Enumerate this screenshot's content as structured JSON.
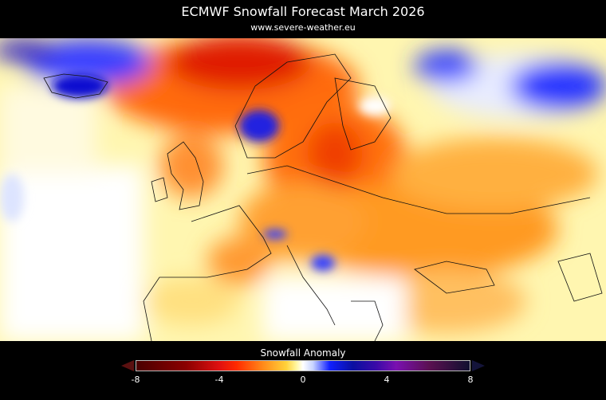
{
  "title": "ECMWF Snowfall Forecast   March 2026",
  "subtitle": "www.severe-weather.eu",
  "colorbar": {
    "label": "Snowfall Anomaly",
    "ticks": [
      "-8",
      "-4",
      "0",
      "4",
      "8"
    ],
    "range": [
      -8,
      8
    ],
    "colors": {
      "negative_max": "#4a0000",
      "negative": "#ff2a00",
      "zero": "#ffffff",
      "positive": "#1020ff",
      "positive_max": "#101030"
    }
  }
}
